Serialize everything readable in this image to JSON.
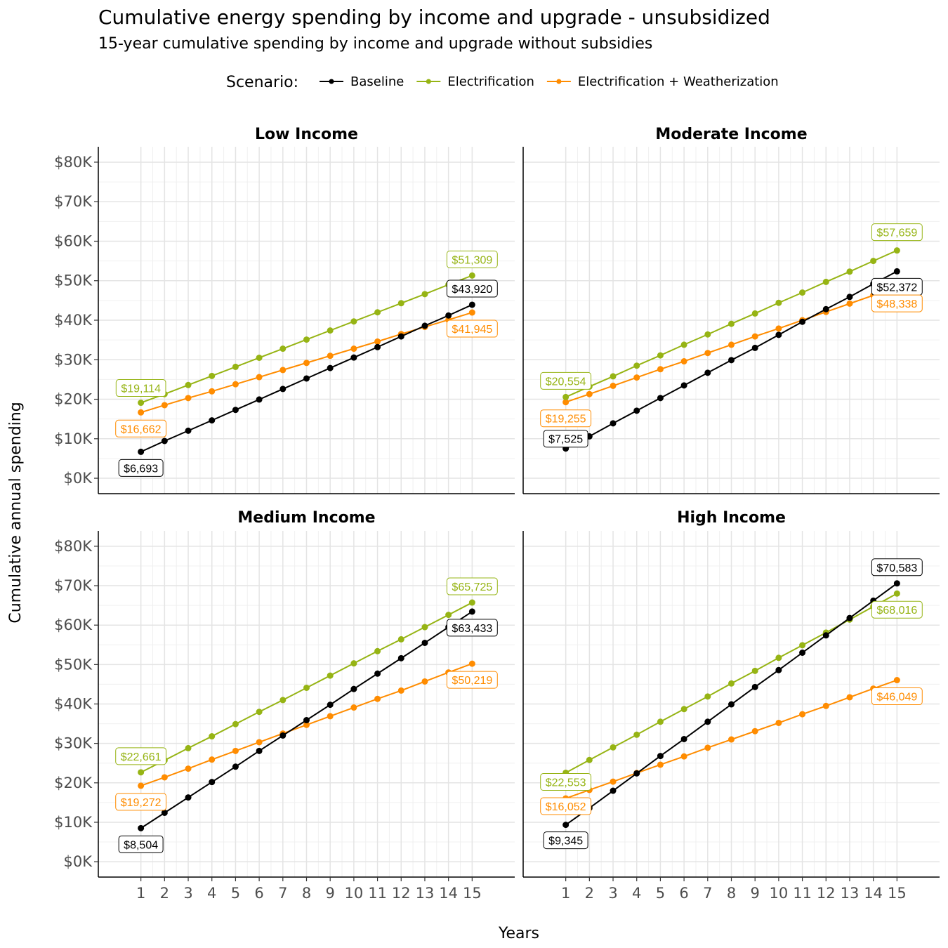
{
  "title": "Cumulative energy spending by income and upgrade - unsubsidized",
  "subtitle": "15-year cumulative spending by income and upgrade without subsidies",
  "legend": {
    "title": "Scenario:",
    "items": [
      {
        "name": "Baseline",
        "color": "#000000"
      },
      {
        "name": "Electrification",
        "color": "#96b414"
      },
      {
        "name": "Electrification + Weatherization",
        "color": "#ff8c00"
      }
    ]
  },
  "chart_data": {
    "type": "line",
    "xlabel": "Years",
    "ylabel": "Cumulative annual spending",
    "ylim": [
      0,
      80000
    ],
    "y_tick_labels": [
      "$0K",
      "$10K",
      "$20K",
      "$30K",
      "$40K",
      "$50K",
      "$60K",
      "$70K",
      "$80K"
    ],
    "y_ticks": [
      0,
      10000,
      20000,
      30000,
      40000,
      50000,
      60000,
      70000,
      80000
    ],
    "x": [
      1,
      2,
      3,
      4,
      5,
      6,
      7,
      8,
      9,
      10,
      11,
      12,
      13,
      14,
      15
    ],
    "x_tick_labels": [
      "1",
      "2",
      "3",
      "4",
      "5",
      "6",
      "7",
      "8",
      "9",
      "10",
      "11",
      "12",
      "13",
      "14",
      "15"
    ],
    "grid": true,
    "legend_position": "top",
    "panels": [
      {
        "title": "Low Income",
        "series": [
          {
            "name": "Baseline",
            "values": [
              6693,
              9430,
              12030,
              14650,
              17300,
              19930,
              22600,
              25250,
              27900,
              30550,
              33200,
              35900,
              38600,
              41200,
              43920
            ],
            "start_label": "$6,693",
            "end_label": "$43,920"
          },
          {
            "name": "Electrification",
            "values": [
              19114,
              21300,
              23600,
              25900,
              28200,
              30500,
              32800,
              35100,
              37400,
              39700,
              42000,
              44300,
              46600,
              49000,
              51309
            ],
            "start_label": "$19,114",
            "end_label": "$51,309"
          },
          {
            "name": "Electrification + Weatherization",
            "values": [
              16662,
              18500,
              20300,
              22000,
              23800,
              25600,
              27400,
              29200,
              31000,
              32800,
              34600,
              36500,
              38300,
              40100,
              41945
            ],
            "start_label": "$16,662",
            "end_label": "$41,945"
          }
        ]
      },
      {
        "title": "Moderate Income",
        "series": [
          {
            "name": "Baseline",
            "values": [
              7525,
              10600,
              13900,
              17100,
              20300,
              23500,
              26700,
              29900,
              33000,
              36300,
              39600,
              42800,
              45900,
              49200,
              52372
            ],
            "start_label": "$7,525",
            "end_label": "$52,372"
          },
          {
            "name": "Electrification",
            "values": [
              20554,
              23200,
              25800,
              28500,
              31100,
              33800,
              36400,
              39100,
              41700,
              44400,
              47000,
              49700,
              52300,
              55000,
              57659
            ],
            "start_label": "$20,554",
            "end_label": "$57,659"
          },
          {
            "name": "Electrification + Weatherization",
            "values": [
              19255,
              21300,
              23400,
              25500,
              27600,
              29600,
              31700,
              33800,
              35900,
              37900,
              40000,
              42100,
              44200,
              46300,
              48338
            ],
            "start_label": "$19,255",
            "end_label": "$48,338"
          }
        ]
      },
      {
        "title": "Medium Income",
        "series": [
          {
            "name": "Baseline",
            "values": [
              8504,
              12400,
              16300,
              20200,
              24100,
              28100,
              32000,
              35900,
              39800,
              43800,
              47700,
              51600,
              55500,
              59500,
              63433
            ],
            "start_label": "$8,504",
            "end_label": "$63,433"
          },
          {
            "name": "Electrification",
            "values": [
              22661,
              25700,
              28800,
              31800,
              34900,
              38000,
              41000,
              44100,
              47200,
              50300,
              53400,
              56400,
              59500,
              62600,
              65725
            ],
            "start_label": "$22,661",
            "end_label": "$65,725"
          },
          {
            "name": "Electrification + Weatherization",
            "values": [
              19272,
              21400,
              23600,
              25900,
              28100,
              30300,
              32500,
              34700,
              36900,
              39100,
              41300,
              43400,
              45700,
              48000,
              50219
            ],
            "start_label": "$19,272",
            "end_label": "$50,219"
          }
        ]
      },
      {
        "title": "High Income",
        "series": [
          {
            "name": "Baseline",
            "values": [
              9345,
              13600,
              18000,
              22400,
              26800,
              31100,
              35500,
              39900,
              44300,
              48600,
              53000,
              57400,
              61800,
              66200,
              70583
            ],
            "start_label": "$9,345",
            "end_label": "$70,583"
          },
          {
            "name": "Electrification",
            "values": [
              22553,
              25800,
              29000,
              32200,
              35500,
              38700,
              41900,
              45200,
              48400,
              51700,
              54900,
              58100,
              61400,
              64700,
              68016
            ],
            "start_label": "$22,553",
            "end_label": "$68,016"
          },
          {
            "name": "Electrification + Weatherization",
            "values": [
              16052,
              18200,
              20300,
              22500,
              24600,
              26700,
              28900,
              31000,
              33100,
              35200,
              37400,
              39500,
              41700,
              43900,
              46049
            ],
            "start_label": "$16,052",
            "end_label": "$46,049"
          }
        ]
      }
    ]
  }
}
